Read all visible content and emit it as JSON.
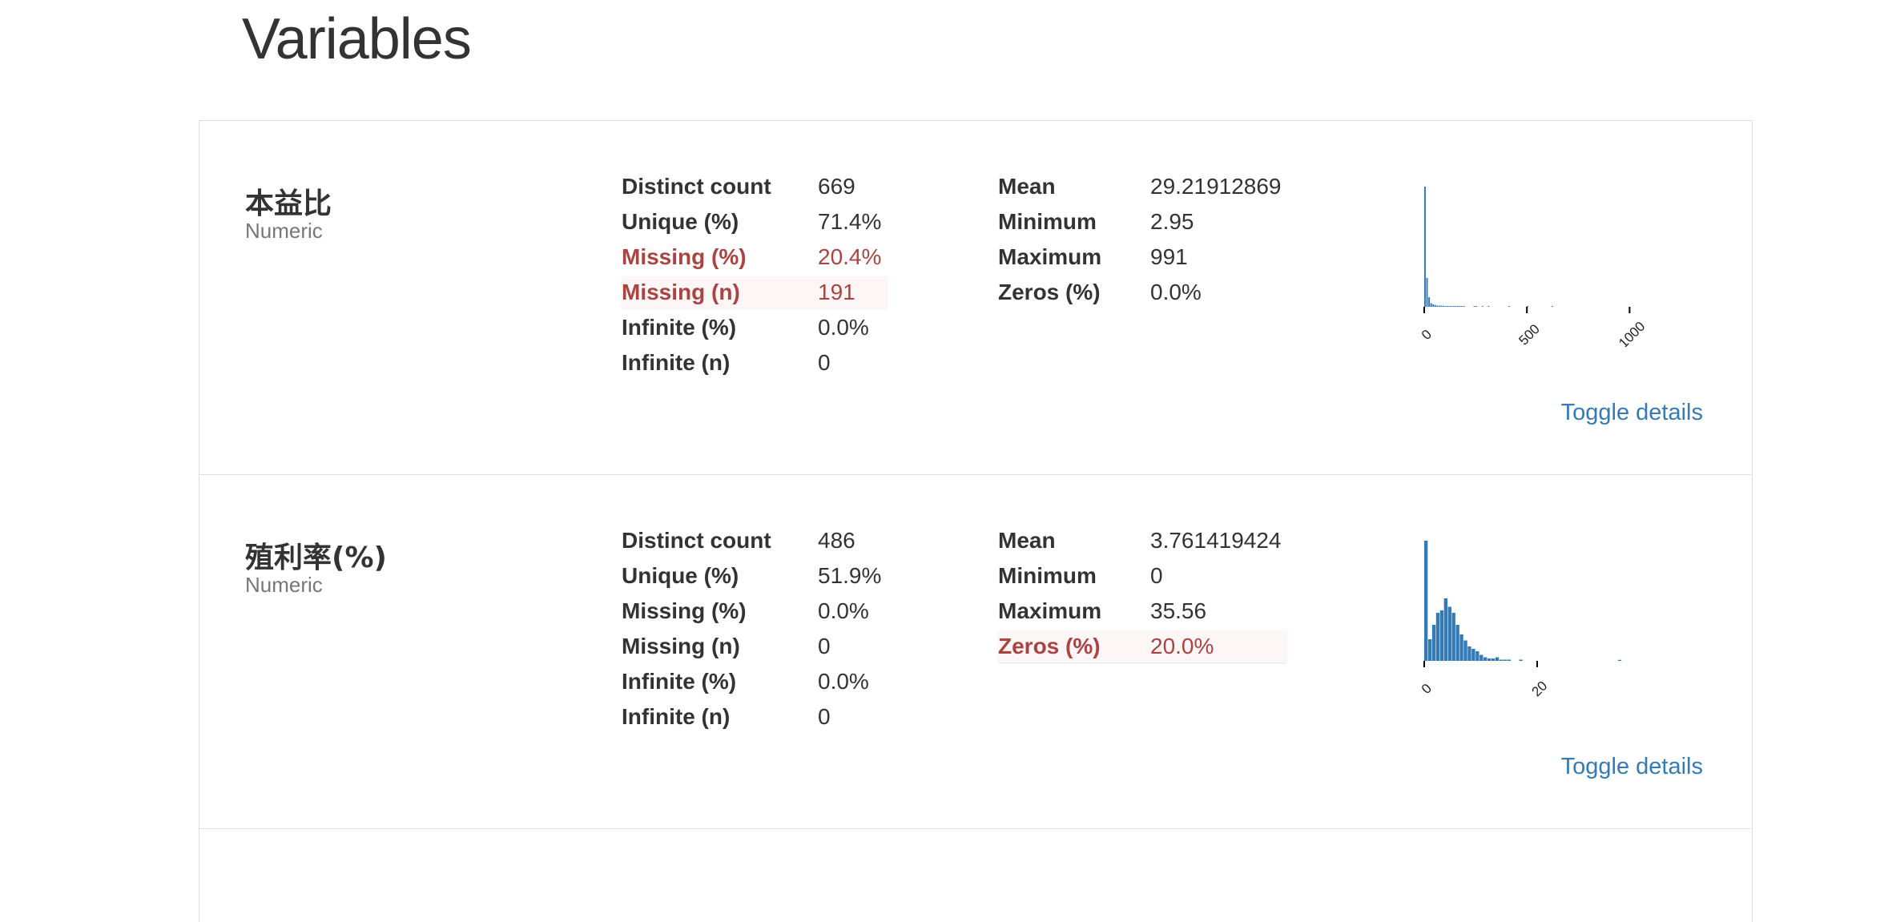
{
  "page": {
    "title": "Variables"
  },
  "variables": [
    {
      "name": "本益比",
      "type": "Numeric",
      "stats_left": [
        {
          "label": "Distinct count",
          "value": "669",
          "alert": false
        },
        {
          "label": "Unique (%)",
          "value": "71.4%",
          "alert": false
        },
        {
          "label": "Missing (%)",
          "value": "20.4%",
          "alert": true
        },
        {
          "label": "Missing (n)",
          "value": "191",
          "alert": true
        },
        {
          "label": "Infinite (%)",
          "value": "0.0%",
          "alert": false
        },
        {
          "label": "Infinite (n)",
          "value": "0",
          "alert": false
        }
      ],
      "stats_right": [
        {
          "label": "Mean",
          "value": "29.21912869",
          "alert": false
        },
        {
          "label": "Minimum",
          "value": "2.95",
          "alert": false
        },
        {
          "label": "Maximum",
          "value": "991",
          "alert": false
        },
        {
          "label": "Zeros (%)",
          "value": "0.0%",
          "alert": false
        }
      ],
      "toggle_label": "Toggle details"
    },
    {
      "name": "殖利率(%)",
      "type": "Numeric",
      "stats_left": [
        {
          "label": "Distinct count",
          "value": "486",
          "alert": false
        },
        {
          "label": "Unique (%)",
          "value": "51.9%",
          "alert": false
        },
        {
          "label": "Missing (%)",
          "value": "0.0%",
          "alert": false
        },
        {
          "label": "Missing (n)",
          "value": "0",
          "alert": false
        },
        {
          "label": "Infinite (%)",
          "value": "0.0%",
          "alert": false
        },
        {
          "label": "Infinite (n)",
          "value": "0",
          "alert": false
        }
      ],
      "stats_right": [
        {
          "label": "Mean",
          "value": "3.761419424",
          "alert": false
        },
        {
          "label": "Minimum",
          "value": "0",
          "alert": false
        },
        {
          "label": "Maximum",
          "value": "35.56",
          "alert": false
        },
        {
          "label": "Zeros (%)",
          "value": "20.0%",
          "alert": true
        }
      ],
      "toggle_label": "Toggle details"
    }
  ],
  "chart_data": [
    {
      "type": "bar",
      "title": "",
      "xlabel": "",
      "ylabel": "",
      "x_ticks": [
        "0",
        "500",
        "1000"
      ],
      "xlim": [
        0,
        1100
      ],
      "bin_width": 10,
      "values": [
        100,
        24,
        8,
        3,
        2,
        1.5,
        1,
        1,
        1,
        0.8,
        0.6,
        0.6,
        0.5,
        0.4,
        0.4,
        0.3,
        0.3,
        0.3,
        0.2,
        0.2,
        0,
        0,
        0,
        0,
        0.2,
        0.2,
        0,
        0,
        0.2,
        0,
        0,
        0.2,
        0,
        0,
        0,
        0,
        0,
        0,
        0,
        0,
        0,
        0.2,
        0,
        0,
        0,
        0,
        0,
        0,
        0,
        0,
        0.2,
        0,
        0,
        0,
        0,
        0,
        0,
        0,
        0,
        0,
        0,
        0,
        0.2
      ],
      "bar_color": "#337ab7"
    },
    {
      "type": "bar",
      "title": "",
      "xlabel": "",
      "ylabel": "",
      "x_ticks": [
        "0",
        "20"
      ],
      "xlim": [
        0,
        40
      ],
      "bin_width": 0.7,
      "values": [
        100,
        18,
        30,
        40,
        42,
        52,
        45,
        40,
        30,
        22,
        17,
        12,
        10,
        8,
        5,
        3,
        2,
        2,
        3,
        1,
        1,
        1,
        0,
        0,
        1,
        0,
        0,
        0,
        0,
        0,
        0,
        0,
        0,
        0,
        0,
        0,
        0,
        0,
        0,
        0,
        0,
        0,
        0,
        0,
        0,
        0,
        0,
        0,
        0,
        0.8
      ],
      "bar_color": "#337ab7"
    }
  ]
}
